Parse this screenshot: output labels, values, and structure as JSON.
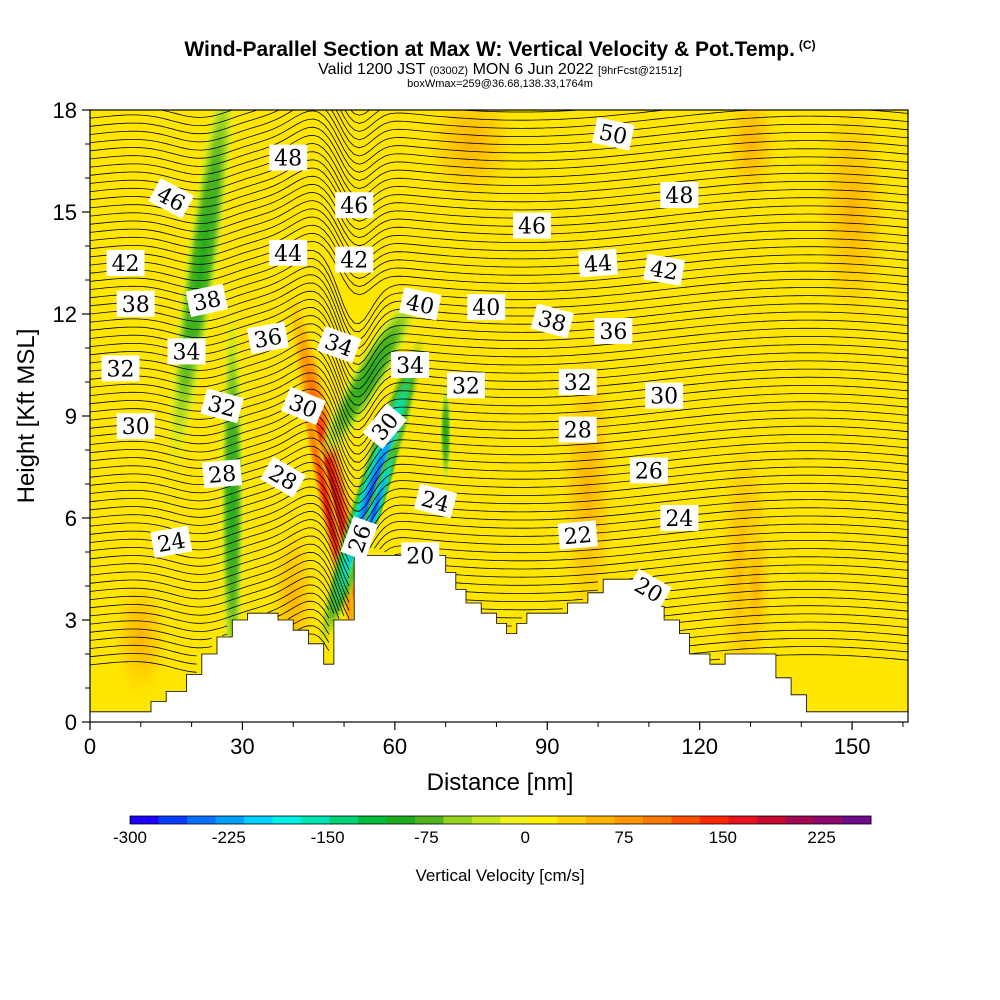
{
  "title": {
    "main": "Wind-Parallel Section at Max W: Vertical Velocity & Pot.Temp.",
    "copyright": "(C)",
    "valid_prefix": "Valid 1200 JST",
    "utc": "(0300Z)",
    "valid_date": "MON 6 Jun 2022",
    "forecast_info": "[9hrFcst@2151z]",
    "box_info": "boxWmax=259@36.68,138.33,1764m"
  },
  "chart_data": {
    "type": "heatmap",
    "xlabel": "Distance [nm]",
    "ylabel": "Height [Kft MSL]",
    "xlim": [
      0,
      161
    ],
    "ylim": [
      0,
      18
    ],
    "x_ticks": [
      0,
      30,
      60,
      90,
      120,
      150
    ],
    "y_ticks": [
      0,
      3,
      6,
      9,
      12,
      15,
      18
    ],
    "colorbar": {
      "label": "Vertical Velocity [cm/s]",
      "tick_labels": [
        "-300",
        "-225",
        "-150",
        "-75",
        "0",
        "75",
        "150",
        "225"
      ],
      "tick_values": [
        -300,
        -225,
        -150,
        -75,
        0,
        75,
        150,
        225
      ],
      "range": [
        -300,
        262.5
      ],
      "colors": [
        "#1e00ff",
        "#0a3cff",
        "#0a6eff",
        "#00a0ff",
        "#00d2ff",
        "#00f0e6",
        "#00e6b4",
        "#00d278",
        "#00be3c",
        "#1eaa1e",
        "#50b41e",
        "#96d21e",
        "#c8e61e",
        "#f0f01e",
        "#fff000",
        "#ffd200",
        "#ffb400",
        "#ff9600",
        "#ff7800",
        "#ff5000",
        "#ff2800",
        "#e6141e",
        "#c80a32",
        "#a00a50",
        "#8c0a6e",
        "#6e0a8c"
      ]
    },
    "terrain_kft": [
      {
        "x": 0,
        "h": 0.3
      },
      {
        "x": 12,
        "h": 0.3
      },
      {
        "x": 12,
        "h": 0.6
      },
      {
        "x": 15,
        "h": 0.6
      },
      {
        "x": 15,
        "h": 0.9
      },
      {
        "x": 19,
        "h": 0.9
      },
      {
        "x": 19,
        "h": 1.4
      },
      {
        "x": 22,
        "h": 1.4
      },
      {
        "x": 22,
        "h": 2.0
      },
      {
        "x": 25,
        "h": 2.0
      },
      {
        "x": 25,
        "h": 2.5
      },
      {
        "x": 28,
        "h": 2.5
      },
      {
        "x": 28,
        "h": 3.0
      },
      {
        "x": 31,
        "h": 3.0
      },
      {
        "x": 31,
        "h": 3.2
      },
      {
        "x": 37,
        "h": 3.2
      },
      {
        "x": 37,
        "h": 3.0
      },
      {
        "x": 40,
        "h": 3.0
      },
      {
        "x": 40,
        "h": 2.7
      },
      {
        "x": 43,
        "h": 2.7
      },
      {
        "x": 43,
        "h": 2.3
      },
      {
        "x": 46,
        "h": 2.3
      },
      {
        "x": 46,
        "h": 1.7
      },
      {
        "x": 48,
        "h": 1.7
      },
      {
        "x": 48,
        "h": 3.0
      },
      {
        "x": 52,
        "h": 3.0
      },
      {
        "x": 52,
        "h": 4.9
      },
      {
        "x": 70,
        "h": 4.9
      },
      {
        "x": 70,
        "h": 4.4
      },
      {
        "x": 72,
        "h": 4.4
      },
      {
        "x": 72,
        "h": 3.9
      },
      {
        "x": 74,
        "h": 3.9
      },
      {
        "x": 74,
        "h": 3.5
      },
      {
        "x": 77,
        "h": 3.5
      },
      {
        "x": 77,
        "h": 3.2
      },
      {
        "x": 80,
        "h": 3.2
      },
      {
        "x": 80,
        "h": 2.9
      },
      {
        "x": 82,
        "h": 2.9
      },
      {
        "x": 82,
        "h": 2.6
      },
      {
        "x": 84,
        "h": 2.6
      },
      {
        "x": 84,
        "h": 2.9
      },
      {
        "x": 86,
        "h": 2.9
      },
      {
        "x": 86,
        "h": 3.2
      },
      {
        "x": 94,
        "h": 3.2
      },
      {
        "x": 94,
        "h": 3.5
      },
      {
        "x": 98,
        "h": 3.5
      },
      {
        "x": 98,
        "h": 3.8
      },
      {
        "x": 101,
        "h": 3.8
      },
      {
        "x": 101,
        "h": 4.2
      },
      {
        "x": 108,
        "h": 4.2
      },
      {
        "x": 108,
        "h": 3.8
      },
      {
        "x": 111,
        "h": 3.8
      },
      {
        "x": 111,
        "h": 3.4
      },
      {
        "x": 113,
        "h": 3.4
      },
      {
        "x": 113,
        "h": 3.0
      },
      {
        "x": 116,
        "h": 3.0
      },
      {
        "x": 116,
        "h": 2.6
      },
      {
        "x": 118,
        "h": 2.6
      },
      {
        "x": 118,
        "h": 2.0
      },
      {
        "x": 122,
        "h": 2.0
      },
      {
        "x": 122,
        "h": 1.7
      },
      {
        "x": 125,
        "h": 1.7
      },
      {
        "x": 125,
        "h": 2.0
      },
      {
        "x": 135,
        "h": 2.0
      },
      {
        "x": 135,
        "h": 1.3
      },
      {
        "x": 138,
        "h": 1.3
      },
      {
        "x": 138,
        "h": 0.8
      },
      {
        "x": 141,
        "h": 0.8
      },
      {
        "x": 141,
        "h": 0.3
      },
      {
        "x": 161,
        "h": 0.3
      }
    ],
    "contour_labels": [
      {
        "text": "50",
        "x": 103,
        "y": 17.3,
        "angle": 12
      },
      {
        "text": "48",
        "x": 39,
        "y": 16.6,
        "angle": 0
      },
      {
        "text": "48",
        "x": 116,
        "y": 15.5,
        "angle": 0
      },
      {
        "text": "46",
        "x": 16,
        "y": 15.4,
        "angle": 28
      },
      {
        "text": "46",
        "x": 52,
        "y": 15.2,
        "angle": 0
      },
      {
        "text": "46",
        "x": 87,
        "y": 14.6,
        "angle": 0
      },
      {
        "text": "44",
        "x": 39,
        "y": 13.8,
        "angle": 0
      },
      {
        "text": "44",
        "x": 100,
        "y": 13.5,
        "angle": -4
      },
      {
        "text": "42",
        "x": 7,
        "y": 13.5,
        "angle": 0
      },
      {
        "text": "42",
        "x": 52,
        "y": 13.6,
        "angle": 0
      },
      {
        "text": "42",
        "x": 113,
        "y": 13.3,
        "angle": 10
      },
      {
        "text": "40",
        "x": 65,
        "y": 12.3,
        "angle": 12
      },
      {
        "text": "40",
        "x": 78,
        "y": 12.2,
        "angle": 0
      },
      {
        "text": "38",
        "x": 9,
        "y": 12.3,
        "angle": 0
      },
      {
        "text": "38",
        "x": 23,
        "y": 12.4,
        "angle": -12
      },
      {
        "text": "38",
        "x": 91,
        "y": 11.8,
        "angle": 15
      },
      {
        "text": "36",
        "x": 35,
        "y": 11.3,
        "angle": -10
      },
      {
        "text": "36",
        "x": 103,
        "y": 11.5,
        "angle": 0
      },
      {
        "text": "34",
        "x": 19,
        "y": 10.9,
        "angle": 0
      },
      {
        "text": "34",
        "x": 49,
        "y": 11.1,
        "angle": 20
      },
      {
        "text": "34",
        "x": 63,
        "y": 10.5,
        "angle": 0
      },
      {
        "text": "32",
        "x": 6,
        "y": 10.4,
        "angle": 0
      },
      {
        "text": "32",
        "x": 74,
        "y": 9.9,
        "angle": 0
      },
      {
        "text": "32",
        "x": 96,
        "y": 10.0,
        "angle": 0
      },
      {
        "text": "32",
        "x": 26,
        "y": 9.3,
        "angle": 15
      },
      {
        "text": "30",
        "x": 42,
        "y": 9.3,
        "angle": 22
      },
      {
        "text": "30",
        "x": 58,
        "y": 8.7,
        "angle": -50
      },
      {
        "text": "30",
        "x": 113,
        "y": 9.6,
        "angle": 0
      },
      {
        "text": "30",
        "x": 9,
        "y": 8.7,
        "angle": 0
      },
      {
        "text": "28",
        "x": 96,
        "y": 8.6,
        "angle": 0
      },
      {
        "text": "28",
        "x": 26,
        "y": 7.3,
        "angle": -5
      },
      {
        "text": "28",
        "x": 38,
        "y": 7.2,
        "angle": 30
      },
      {
        "text": "26",
        "x": 110,
        "y": 7.4,
        "angle": 0
      },
      {
        "text": "26",
        "x": 53,
        "y": 5.4,
        "angle": -70
      },
      {
        "text": "24",
        "x": 68,
        "y": 6.5,
        "angle": 15
      },
      {
        "text": "24",
        "x": 116,
        "y": 6.0,
        "angle": 0
      },
      {
        "text": "24",
        "x": 16,
        "y": 5.3,
        "angle": -10
      },
      {
        "text": "22",
        "x": 96,
        "y": 5.5,
        "angle": -5
      },
      {
        "text": "20",
        "x": 65,
        "y": 4.9,
        "angle": 0
      },
      {
        "text": "20",
        "x": 110,
        "y": 3.9,
        "angle": 30
      }
    ]
  }
}
